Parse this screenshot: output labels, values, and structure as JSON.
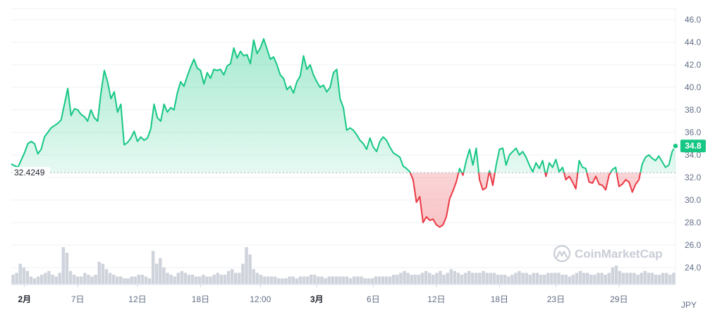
{
  "chart_data": {
    "type": "area",
    "title": "",
    "currency_unit": "JPY",
    "watermark": "CoinMarketCap",
    "reference_line": {
      "value": 32.4249,
      "label": "32.4249"
    },
    "current_price": {
      "value": 34.8,
      "label": "34.8"
    },
    "ylim": [
      22.5,
      47.0
    ],
    "y_ticks": [
      "24.0",
      "26.0",
      "28.0",
      "30.0",
      "32.0",
      "34.0",
      "36.0",
      "38.0",
      "40.0",
      "42.0",
      "44.0",
      "46.0"
    ],
    "x_ticks": [
      {
        "label": "2月",
        "pos": 0.02,
        "bold": true
      },
      {
        "label": "7日",
        "pos": 0.1,
        "bold": false
      },
      {
        "label": "12日",
        "pos": 0.19,
        "bold": false
      },
      {
        "label": "18日",
        "pos": 0.285,
        "bold": false
      },
      {
        "label": "12:00",
        "pos": 0.375,
        "bold": false
      },
      {
        "label": "3月",
        "pos": 0.46,
        "bold": true
      },
      {
        "label": "6日",
        "pos": 0.545,
        "bold": false
      },
      {
        "label": "12日",
        "pos": 0.64,
        "bold": false
      },
      {
        "label": "18日",
        "pos": 0.735,
        "bold": false
      },
      {
        "label": "23日",
        "pos": 0.82,
        "bold": false
      },
      {
        "label": "29日",
        "pos": 0.915,
        "bold": false
      }
    ],
    "colors": {
      "up": "#16c784",
      "down": "#ea3943",
      "volume": "#cfd3db",
      "grid": "#eff2f5"
    },
    "series": [
      {
        "x": [
          0.0,
          0.01,
          0.02,
          0.025,
          0.03,
          0.035,
          0.04,
          0.045,
          0.05,
          0.06,
          0.07,
          0.075,
          0.08,
          0.085,
          0.09,
          0.095,
          0.1,
          0.105,
          0.11,
          0.115,
          0.12,
          0.125,
          0.13,
          0.135,
          0.14,
          0.145,
          0.15,
          0.155,
          0.16,
          0.165,
          0.17,
          0.175,
          0.18,
          0.185,
          0.19,
          0.195,
          0.2,
          0.205,
          0.21,
          0.215,
          0.22,
          0.225,
          0.23,
          0.235,
          0.24,
          0.245,
          0.25,
          0.255,
          0.26,
          0.265,
          0.27,
          0.275,
          0.28,
          0.285,
          0.29,
          0.295,
          0.3,
          0.305,
          0.31,
          0.315,
          0.32,
          0.325,
          0.33,
          0.335,
          0.34,
          0.345,
          0.35,
          0.355,
          0.36,
          0.365,
          0.37,
          0.375,
          0.38,
          0.385,
          0.39,
          0.395,
          0.4,
          0.405,
          0.41,
          0.415,
          0.42,
          0.425,
          0.43,
          0.435,
          0.44,
          0.445,
          0.45,
          0.455,
          0.46,
          0.465,
          0.47,
          0.475,
          0.48,
          0.485,
          0.49,
          0.495,
          0.5,
          0.505,
          0.51,
          0.515,
          0.52,
          0.525,
          0.53,
          0.535,
          0.54,
          0.545,
          0.55,
          0.555,
          0.56,
          0.565,
          0.57,
          0.575,
          0.58,
          0.585,
          0.59,
          0.595,
          0.6,
          0.605,
          0.61,
          0.615,
          0.62,
          0.625,
          0.63,
          0.635,
          0.64,
          0.645,
          0.65,
          0.655,
          0.66,
          0.665,
          0.67,
          0.675,
          0.68,
          0.685,
          0.69,
          0.695,
          0.7,
          0.705,
          0.71,
          0.715,
          0.72,
          0.725,
          0.73,
          0.735,
          0.74,
          0.745,
          0.75,
          0.755,
          0.76,
          0.765,
          0.77,
          0.775,
          0.78,
          0.785,
          0.79,
          0.795,
          0.8,
          0.805,
          0.81,
          0.815,
          0.82,
          0.825,
          0.83,
          0.835,
          0.84,
          0.845,
          0.85,
          0.855,
          0.86,
          0.865,
          0.87,
          0.875,
          0.88,
          0.885,
          0.89,
          0.895,
          0.9,
          0.905,
          0.91,
          0.915,
          0.92,
          0.925,
          0.93,
          0.935,
          0.94,
          0.945,
          0.95,
          0.955,
          0.96,
          0.965,
          0.97,
          0.975,
          0.98,
          0.985,
          0.99,
          0.995,
          1.0
        ],
        "y": [
          33.2,
          32.9,
          34.2,
          35.0,
          35.2,
          35.0,
          34.1,
          34.5,
          35.6,
          36.4,
          36.8,
          37.1,
          38.5,
          39.9,
          37.5,
          38.1,
          38.0,
          37.6,
          37.4,
          37.0,
          38.0,
          37.3,
          37.0,
          39.5,
          41.5,
          40.5,
          39.0,
          39.6,
          37.8,
          38.5,
          34.9,
          35.1,
          35.5,
          36.1,
          35.2,
          35.6,
          35.3,
          35.5,
          36.3,
          38.5,
          37.3,
          37.0,
          38.5,
          37.8,
          38.2,
          38.0,
          39.5,
          40.5,
          40.1,
          41.0,
          41.8,
          42.5,
          41.7,
          41.5,
          40.3,
          41.3,
          40.8,
          41.6,
          41.5,
          41.6,
          41.1,
          41.9,
          42.1,
          43.5,
          42.6,
          43.2,
          42.8,
          42.9,
          42.1,
          44.2,
          43.0,
          43.5,
          44.3,
          43.4,
          42.5,
          42.7,
          42.0,
          41.1,
          40.8,
          39.8,
          40.1,
          39.5,
          40.5,
          41.0,
          42.8,
          41.6,
          42.0,
          41.1,
          40.5,
          40.0,
          40.2,
          39.6,
          40.0,
          41.3,
          41.6,
          39.0,
          38.2,
          36.2,
          36.4,
          36.2,
          35.8,
          35.3,
          35.0,
          34.5,
          35.5,
          34.7,
          34.3,
          35.2,
          35.6,
          35.3,
          34.7,
          34.2,
          34.0,
          33.8,
          33.0,
          32.8,
          32.5,
          31.8,
          29.8,
          30.3,
          28.0,
          28.5,
          28.2,
          28.3,
          27.8,
          27.6,
          27.8,
          28.5,
          30.1,
          30.8,
          31.6,
          32.8,
          32.2,
          33.5,
          34.5,
          33.1,
          34.6,
          31.8,
          30.9,
          31.1,
          32.6,
          31.3,
          33.1,
          34.5,
          34.6,
          33.1,
          34.0,
          34.3,
          34.6,
          34.0,
          34.3,
          33.8,
          33.1,
          32.5,
          33.3,
          32.8,
          33.5,
          32.1,
          33.3,
          32.9,
          33.6,
          32.5,
          32.9,
          31.8,
          32.1,
          31.6,
          31.0,
          33.5,
          32.9,
          32.8,
          31.6,
          31.5,
          32.1,
          31.4,
          31.3,
          30.9,
          32.2,
          32.7,
          32.9,
          31.2,
          31.4,
          31.8,
          31.6,
          30.7,
          31.4,
          31.8,
          33.2,
          33.8,
          34.0,
          33.7,
          33.5,
          33.9,
          33.4,
          32.9,
          33.1,
          34.3,
          34.8
        ]
      }
    ],
    "volume": [
      0.25,
      0.3,
      0.55,
      0.45,
      0.35,
      0.2,
      0.15,
      0.2,
      0.25,
      0.3,
      0.35,
      0.25,
      0.2,
      0.3,
      1.0,
      0.85,
      0.35,
      0.25,
      0.2,
      0.2,
      0.3,
      0.25,
      0.2,
      0.25,
      0.6,
      0.55,
      0.4,
      0.3,
      0.25,
      0.2,
      0.2,
      0.15,
      0.15,
      0.2,
      0.2,
      0.25,
      0.25,
      0.2,
      0.15,
      0.9,
      0.55,
      0.7,
      0.45,
      0.3,
      0.25,
      0.2,
      0.3,
      0.35,
      0.3,
      0.25,
      0.25,
      0.2,
      0.2,
      0.25,
      0.2,
      0.2,
      0.25,
      0.3,
      0.25,
      0.25,
      0.35,
      0.4,
      0.3,
      0.3,
      0.55,
      1.0,
      0.8,
      0.4,
      0.3,
      0.25,
      0.2,
      0.2,
      0.2,
      0.2,
      0.15,
      0.15,
      0.15,
      0.2,
      0.2,
      0.15,
      0.2,
      0.2,
      0.2,
      0.25,
      0.25,
      0.2,
      0.2,
      0.15,
      0.2,
      0.2,
      0.2,
      0.2,
      0.2,
      0.2,
      0.15,
      0.2,
      0.2,
      0.2,
      0.15,
      0.15,
      0.15,
      0.2,
      0.2,
      0.2,
      0.2,
      0.2,
      0.25,
      0.25,
      0.3,
      0.35,
      0.3,
      0.25,
      0.25,
      0.25,
      0.3,
      0.35,
      0.3,
      0.25,
      0.3,
      0.35,
      0.25,
      0.3,
      0.4,
      0.35,
      0.3,
      0.25,
      0.3,
      0.35,
      0.3,
      0.3,
      0.3,
      0.35,
      0.3,
      0.3,
      0.3,
      0.25,
      0.25,
      0.25,
      0.2,
      0.25,
      0.3,
      0.35,
      0.3,
      0.3,
      0.25,
      0.3,
      0.3,
      0.25,
      0.25,
      0.3,
      0.3,
      0.3,
      0.3,
      0.25,
      0.25,
      0.2,
      0.25,
      0.3,
      0.35,
      0.3,
      0.3,
      0.25,
      0.25,
      0.3,
      0.3,
      0.25,
      0.3,
      0.45,
      0.5,
      0.35,
      0.3,
      0.3,
      0.3,
      0.3,
      0.25,
      0.3,
      0.35,
      0.3,
      0.3,
      0.25,
      0.25,
      0.3,
      0.3,
      0.25,
      0.3
    ]
  }
}
